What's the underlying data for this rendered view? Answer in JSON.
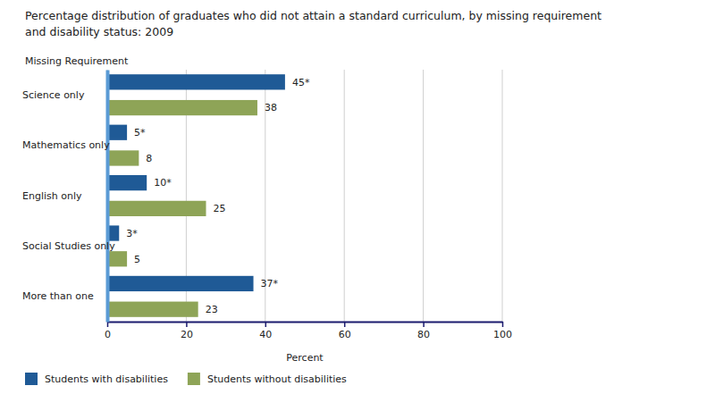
{
  "chart_data": {
    "type": "bar",
    "orientation": "horizontal",
    "title": [
      "Percentage distribution of graduates who did not attain a standard curriculum, by missing requirement",
      "and disability status: 2009"
    ],
    "y_label": "Missing Requirement",
    "x_label": "Percent",
    "categories": [
      "Science only",
      "Mathematics only",
      "English only",
      "Social Studies only",
      "More than one"
    ],
    "series": [
      {
        "name": "Students with disabilities",
        "color": "#1f5a96",
        "values": [
          45,
          5,
          10,
          3,
          37
        ],
        "value_labels": [
          "45*",
          "5*",
          "10*",
          "3*",
          "37*"
        ]
      },
      {
        "name": "Students without disabilities",
        "color": "#8ea457",
        "values": [
          38,
          8,
          25,
          5,
          23
        ]
      }
    ],
    "xlim": [
      0,
      100
    ],
    "xticks": [
      0,
      20,
      40,
      60,
      80,
      100
    ],
    "grid": true,
    "data_labels": true,
    "legend": "bottom-left"
  }
}
